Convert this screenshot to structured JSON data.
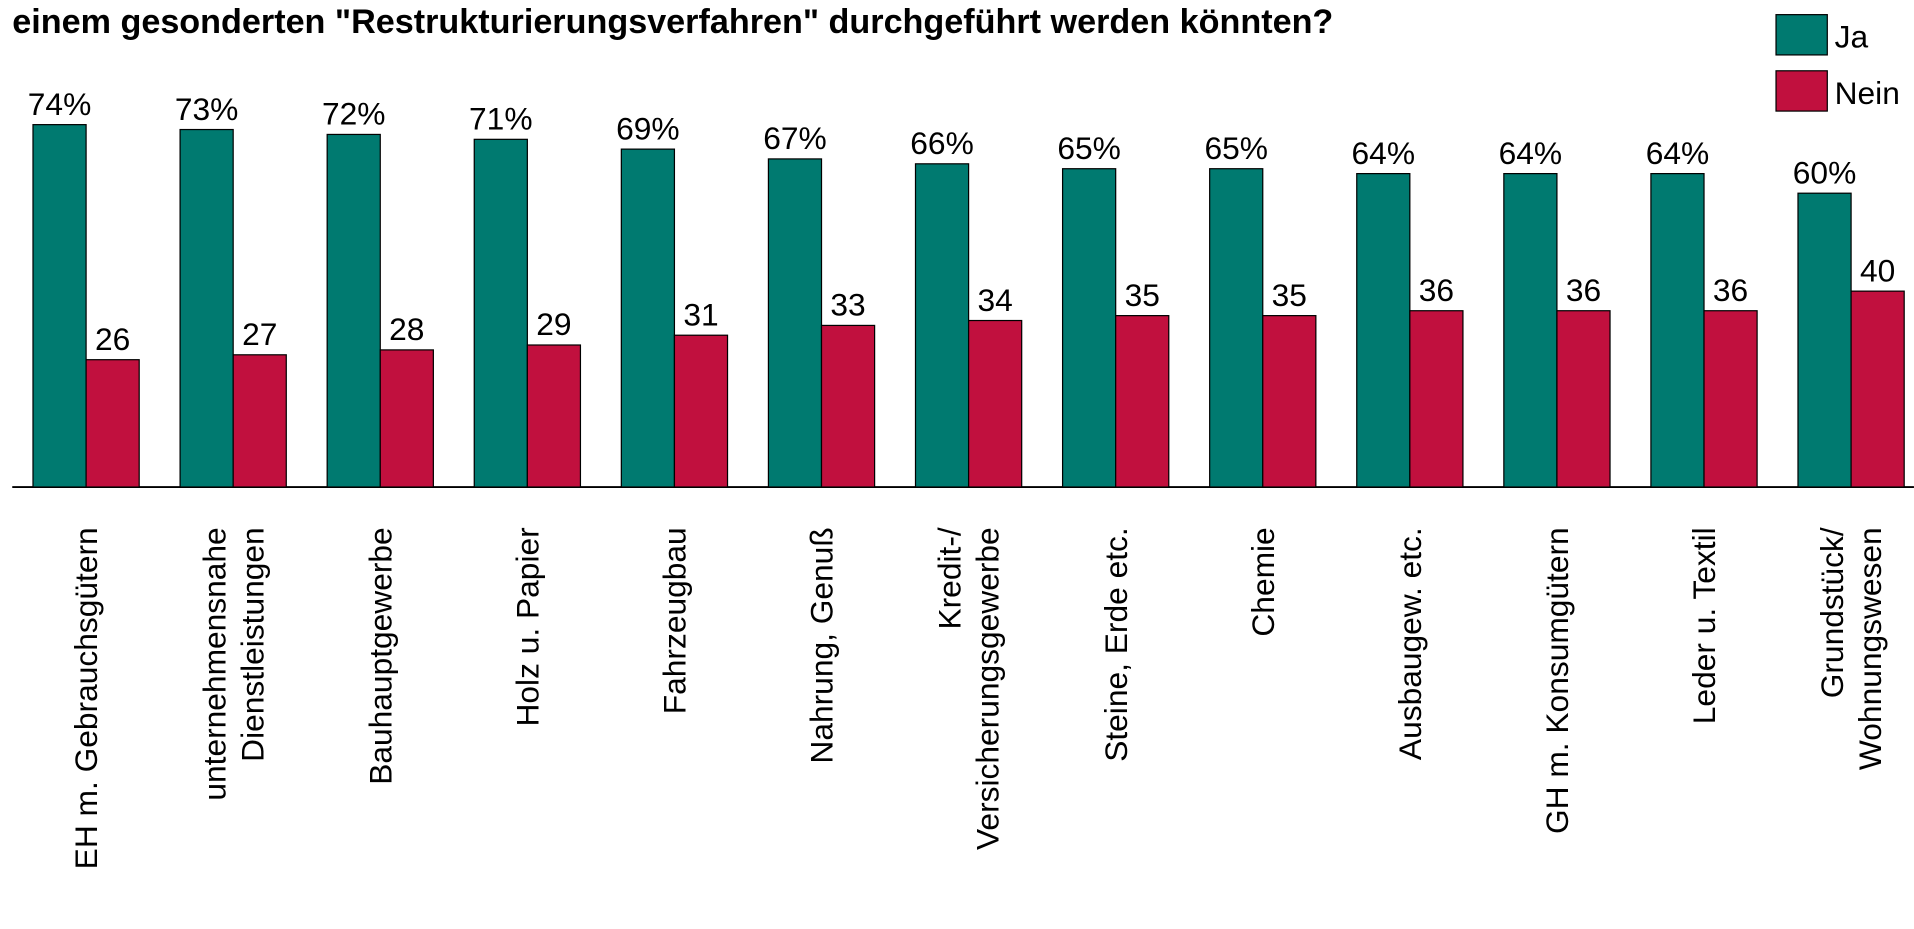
{
  "chart_data": {
    "type": "bar",
    "title": "einem gesonderten \"Restrukturierungsverfahren\" durchgeführt werden könnten?",
    "categories": [
      "EH m. Gebrauchsgütern",
      "unternehmensnahe\nDienstleistungen",
      "Bauhauptgewerbe",
      "Holz u. Papier",
      "Fahrzeugbau",
      "Nahrung, Genuß",
      "Kredit-/\nVersicherungsgewerbe",
      "Steine, Erde etc.",
      "Chemie",
      "Ausbaugew. etc.",
      "GH m. Konsumgütern",
      "Leder u. Textil",
      "Grundstück/\nWohnungswesen"
    ],
    "series": [
      {
        "name": "Ja",
        "color": "#007a70",
        "values": [
          74,
          73,
          72,
          71,
          69,
          67,
          66,
          65,
          65,
          64,
          64,
          64,
          60
        ],
        "value_labels": [
          "74%",
          "73%",
          "72%",
          "71%",
          "69%",
          "67%",
          "66%",
          "65%",
          "65%",
          "64%",
          "64%",
          "64%",
          "60%"
        ]
      },
      {
        "name": "Nein",
        "color": "#c1103e",
        "values": [
          26,
          27,
          28,
          29,
          31,
          33,
          34,
          35,
          35,
          36,
          36,
          36,
          40
        ]
      }
    ],
    "ylim": [
      0,
      100
    ],
    "legend": "top-right"
  }
}
